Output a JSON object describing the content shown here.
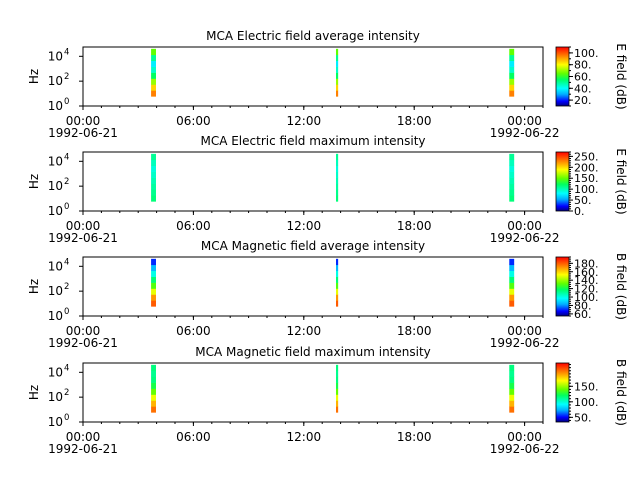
{
  "time_axis": {
    "xlim": [
      "1992-06-21T00:00",
      "1992-06-22T01:00"
    ],
    "ticks": [
      {
        "t": "1992-06-21T00:00",
        "label": "00:00",
        "date": "1992-06-21"
      },
      {
        "t": "1992-06-21T06:00",
        "label": "06:00",
        "date": ""
      },
      {
        "t": "1992-06-21T12:00",
        "label": "12:00",
        "date": ""
      },
      {
        "t": "1992-06-21T18:00",
        "label": "18:00",
        "date": ""
      },
      {
        "t": "1992-06-22T00:00",
        "label": "00:00",
        "date": "1992-06-22"
      }
    ],
    "minor_step_hours": 1
  },
  "chart_data": [
    {
      "type": "heatmap",
      "title": "MCA  Electric field average intensity",
      "ylabel": "Hz",
      "yscale": "log",
      "ylim": [
        1,
        56234
      ],
      "ytick_exponents": [
        0,
        2,
        4
      ],
      "colorbar": {
        "label": "E field (dB)",
        "range": [
          10,
          110
        ],
        "ticks": [
          20,
          40,
          60,
          80,
          100
        ],
        "tick_labels": [
          "20.",
          "40.",
          "60.",
          "80.",
          "100."
        ],
        "minor_step": 10
      },
      "blocks": [
        {
          "t_start": "1992-06-21T03:42",
          "t_end": "1992-06-21T03:58",
          "f_range": [
            6,
            40000
          ]
        },
        {
          "t_start": "1992-06-21T13:45",
          "t_end": "1992-06-21T13:52",
          "f_range": [
            6,
            40000
          ]
        },
        {
          "t_start": "1992-06-21T23:10",
          "t_end": "1992-06-21T23:26",
          "f_range": [
            6,
            40000
          ]
        }
      ],
      "profile": [
        95,
        85,
        70,
        55,
        45,
        38,
        50,
        65
      ]
    },
    {
      "type": "heatmap",
      "title": "MCA  Electric field maximum intensity",
      "ylabel": "Hz",
      "yscale": "log",
      "ylim": [
        1,
        56234
      ],
      "ytick_exponents": [
        0,
        2,
        4
      ],
      "colorbar": {
        "label": "E field (dB)",
        "range": [
          0,
          270
        ],
        "ticks": [
          0,
          50,
          100,
          150,
          200,
          250
        ],
        "tick_labels": [
          "0.",
          "50.",
          "100.",
          "150.",
          "200.",
          "250."
        ],
        "minor_step": 10
      },
      "blocks": [
        {
          "t_start": "1992-06-21T03:42",
          "t_end": "1992-06-21T03:58",
          "f_range": [
            6,
            40000
          ]
        },
        {
          "t_start": "1992-06-21T13:45",
          "t_end": "1992-06-21T13:52",
          "f_range": [
            6,
            40000
          ]
        },
        {
          "t_start": "1992-06-21T23:10",
          "t_end": "1992-06-21T23:26",
          "f_range": [
            6,
            40000
          ]
        }
      ],
      "profile": [
        115,
        110,
        105,
        100,
        95,
        90,
        98,
        108
      ]
    },
    {
      "type": "heatmap",
      "title": "MCA  Magnetic field average intensity",
      "ylabel": "Hz",
      "yscale": "log",
      "ylim": [
        1,
        56234
      ],
      "ytick_exponents": [
        0,
        2,
        4
      ],
      "colorbar": {
        "label": "B field (dB)",
        "range": [
          55,
          195
        ],
        "ticks": [
          60,
          80,
          100,
          120,
          140,
          160,
          180
        ],
        "tick_labels": [
          "60.",
          "80.",
          "100.",
          "120.",
          "140.",
          "160.",
          "180."
        ],
        "minor_step": 5
      },
      "blocks": [
        {
          "t_start": "1992-06-21T03:42",
          "t_end": "1992-06-21T03:58",
          "f_range": [
            6,
            40000
          ]
        },
        {
          "t_start": "1992-06-21T13:45",
          "t_end": "1992-06-21T13:52",
          "f_range": [
            6,
            40000
          ]
        },
        {
          "t_start": "1992-06-21T23:10",
          "t_end": "1992-06-21T23:26",
          "f_range": [
            6,
            40000
          ]
        }
      ],
      "profile": [
        180,
        170,
        150,
        130,
        115,
        100,
        85,
        70
      ]
    },
    {
      "type": "heatmap",
      "title": "MCA  Magnetic field maximum intensity",
      "ylabel": "Hz",
      "yscale": "log",
      "ylim": [
        1,
        56234
      ],
      "ytick_exponents": [
        0,
        2,
        4
      ],
      "colorbar": {
        "label": "B field (dB)",
        "range": [
          35,
          225
        ],
        "ticks": [
          50,
          100,
          150
        ],
        "tick_labels": [
          "50.",
          "100.",
          "150."
        ],
        "minor_step": 10
      },
      "blocks": [
        {
          "t_start": "1992-06-21T03:42",
          "t_end": "1992-06-21T03:58",
          "f_range": [
            6,
            40000
          ]
        },
        {
          "t_start": "1992-06-21T13:45",
          "t_end": "1992-06-21T13:52",
          "f_range": [
            6,
            40000
          ]
        },
        {
          "t_start": "1992-06-21T23:10",
          "t_end": "1992-06-21T23:26",
          "f_range": [
            6,
            40000
          ]
        }
      ],
      "profile": [
        200,
        185,
        165,
        140,
        125,
        115,
        112,
        115
      ]
    }
  ]
}
